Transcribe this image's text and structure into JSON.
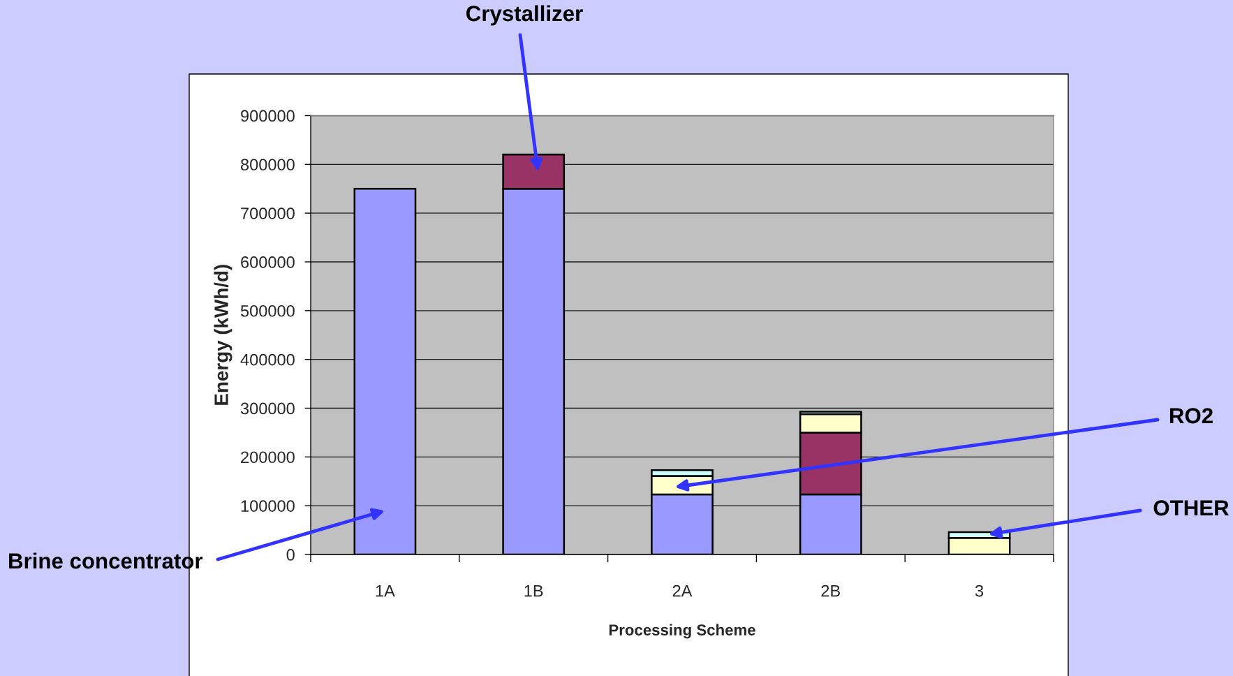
{
  "chart_data": {
    "type": "bar",
    "xlabel": "Processing Scheme",
    "ylabel": "Energy (kWh/d)",
    "categories": [
      "1A",
      "1B",
      "2A",
      "2B",
      "3"
    ],
    "stacked": true,
    "series": [
      {
        "name": "Brine concentrator",
        "color": "#9999ff",
        "values": [
          750000,
          750000,
          123000,
          123000,
          null
        ]
      },
      {
        "name": "Crystallizer",
        "color": "#993366",
        "values": [
          null,
          70000,
          null,
          127000,
          null
        ]
      },
      {
        "name": "RO2",
        "color": "#ffffcc",
        "values": [
          null,
          null,
          38000,
          38000,
          34000
        ]
      },
      {
        "name": "OTHER",
        "color": "#ccffff",
        "values": [
          null,
          null,
          12000,
          5000,
          12000
        ]
      }
    ],
    "ylim": [
      0,
      900000
    ],
    "yticks": [
      0,
      100000,
      200000,
      300000,
      400000,
      500000,
      600000,
      700000,
      800000,
      900000
    ],
    "grid": "y"
  }
}
